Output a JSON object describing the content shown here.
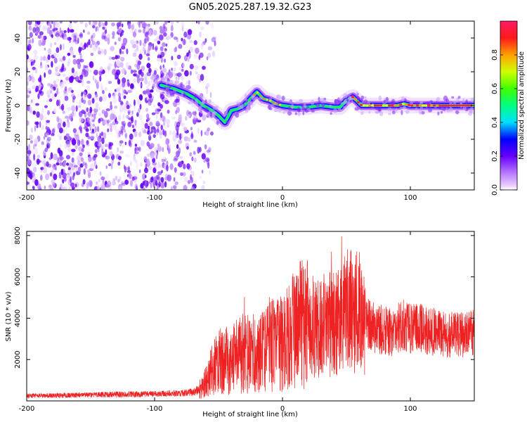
{
  "chart_data": [
    {
      "type": "heatmap",
      "title": "GN05.2025.287.19.32.G23",
      "xlabel": "Height of straight line (km)",
      "ylabel": "Frequency (Hz)",
      "xlim": [
        -200,
        150
      ],
      "ylim": [
        -50,
        50
      ],
      "x_ticks": [
        -200,
        -100,
        0,
        100
      ],
      "y_ticks": [
        -40,
        -20,
        0,
        20,
        40
      ],
      "ridge": {
        "x": [
          -95,
          -85,
          -75,
          -68,
          -62,
          -55,
          -50,
          -45,
          -40,
          -35,
          -30,
          -25,
          -20,
          -15,
          -10,
          -5,
          0,
          10,
          20,
          30,
          40,
          45,
          50,
          55,
          58,
          62,
          70,
          80,
          90,
          95,
          100,
          110,
          120,
          130,
          140,
          150
        ],
        "y": [
          12,
          10,
          7,
          4,
          0,
          -3,
          -6,
          -10,
          -3,
          -2,
          0,
          4,
          8,
          4,
          3,
          1,
          0,
          -1,
          -1,
          0,
          -1,
          -1,
          3,
          5,
          3,
          0,
          0,
          0,
          0,
          1,
          0,
          0,
          0,
          0,
          0,
          0
        ]
      },
      "noise_region": [
        -200,
        -60
      ],
      "colorbar": {
        "label": "Normalized spectral amplitude",
        "ticks": [
          "0.0",
          "0.2",
          "0.4",
          "0.6",
          "0.8"
        ],
        "tick_values": [
          0,
          0.2,
          0.4,
          0.6,
          0.8
        ],
        "range": [
          0,
          1
        ]
      }
    },
    {
      "type": "line",
      "xlabel": "Height of straight line (km)",
      "ylabel": "SNR (10 * v/v)",
      "xlim": [
        -200,
        150
      ],
      "ylim": [
        0,
        8200
      ],
      "x_ticks": [
        -200,
        -100,
        0,
        100
      ],
      "y_ticks": [
        2000,
        4000,
        6000,
        8000
      ],
      "series": [
        {
          "name": "SNR",
          "color": "#ee2222",
          "x": [
            -200,
            -180,
            -160,
            -140,
            -120,
            -100,
            -90,
            -80,
            -70,
            -65,
            -60,
            -55,
            -50,
            -45,
            -40,
            -35,
            -30,
            -25,
            -20,
            -15,
            -10,
            -5,
            0,
            5,
            10,
            15,
            20,
            25,
            30,
            35,
            40,
            45,
            50,
            55,
            60,
            65,
            70,
            75,
            80,
            85,
            90,
            95,
            100,
            110,
            120,
            130,
            140,
            150
          ],
          "y": [
            250,
            260,
            280,
            300,
            320,
            330,
            350,
            380,
            420,
            550,
            900,
            1500,
            1900,
            2000,
            1900,
            2200,
            2400,
            2300,
            2300,
            2400,
            2800,
            2600,
            2800,
            3100,
            3500,
            3700,
            3700,
            3600,
            3700,
            3600,
            3900,
            4100,
            4400,
            4300,
            4300,
            3900,
            3600,
            3500,
            3400,
            3300,
            3500,
            3700,
            3500,
            3500,
            3300,
            3200,
            3200,
            3300
          ]
        }
      ]
    }
  ]
}
